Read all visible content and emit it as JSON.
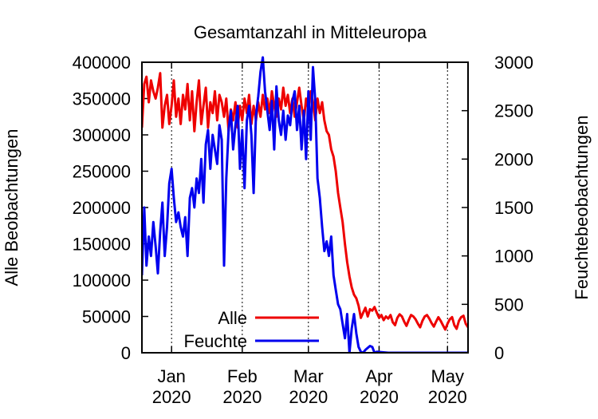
{
  "chart_data": {
    "type": "line",
    "title": "Gesamtanzahl in Mitteleuropa",
    "ylabel": "Alle Beobachtungen",
    "y2label": "Feuchtebeobachtungen",
    "ylim": [
      0,
      400000
    ],
    "y2lim": [
      0,
      3000
    ],
    "xlim": [
      "2019-12-19",
      "2020-05-10"
    ],
    "yticks": [
      0,
      50000,
      100000,
      150000,
      200000,
      250000,
      300000,
      350000,
      400000
    ],
    "y2ticks": [
      0,
      500,
      1000,
      1500,
      2000,
      2500,
      3000
    ],
    "xticks": [
      {
        "date": "2020-01-01",
        "month": "Jan",
        "year": "2020"
      },
      {
        "date": "2020-02-01",
        "month": "Feb",
        "year": "2020"
      },
      {
        "date": "2020-03-01",
        "month": "Mar",
        "year": "2020"
      },
      {
        "date": "2020-04-01",
        "month": "Apr",
        "year": "2020"
      },
      {
        "date": "2020-05-01",
        "month": "May",
        "year": "2020"
      }
    ],
    "grid": "vertical dotted at month starts",
    "legend_position": "bottom-left",
    "series": [
      {
        "name": "Alle",
        "axis": "y",
        "color": "#ee0000",
        "points": [
          [
            "2019-12-19",
            310000
          ],
          [
            "2019-12-20",
            370000
          ],
          [
            "2019-12-21",
            380000
          ],
          [
            "2019-12-22",
            345000
          ],
          [
            "2019-12-23",
            375000
          ],
          [
            "2019-12-24",
            360000
          ],
          [
            "2019-12-25",
            350000
          ],
          [
            "2019-12-26",
            365000
          ],
          [
            "2019-12-27",
            385000
          ],
          [
            "2019-12-28",
            310000
          ],
          [
            "2019-12-29",
            340000
          ],
          [
            "2019-12-30",
            355000
          ],
          [
            "2019-12-31",
            315000
          ],
          [
            "2020-01-01",
            340000
          ],
          [
            "2020-01-02",
            375000
          ],
          [
            "2020-01-03",
            325000
          ],
          [
            "2020-01-04",
            350000
          ],
          [
            "2020-01-05",
            315000
          ],
          [
            "2020-01-06",
            355000
          ],
          [
            "2020-01-07",
            335000
          ],
          [
            "2020-01-08",
            370000
          ],
          [
            "2020-01-09",
            320000
          ],
          [
            "2020-01-10",
            360000
          ],
          [
            "2020-01-11",
            305000
          ],
          [
            "2020-01-12",
            345000
          ],
          [
            "2020-01-13",
            375000
          ],
          [
            "2020-01-14",
            315000
          ],
          [
            "2020-01-15",
            340000
          ],
          [
            "2020-01-16",
            365000
          ],
          [
            "2020-01-17",
            310000
          ],
          [
            "2020-01-18",
            345000
          ],
          [
            "2020-01-19",
            330000
          ],
          [
            "2020-01-20",
            360000
          ],
          [
            "2020-01-21",
            320000
          ],
          [
            "2020-01-22",
            355000
          ],
          [
            "2020-01-23",
            345000
          ],
          [
            "2020-01-24",
            325000
          ],
          [
            "2020-01-25",
            350000
          ],
          [
            "2020-01-26",
            305000
          ],
          [
            "2020-01-27",
            335000
          ],
          [
            "2020-01-28",
            320000
          ],
          [
            "2020-01-29",
            345000
          ],
          [
            "2020-01-30",
            310000
          ],
          [
            "2020-01-31",
            340000
          ],
          [
            "2020-02-01",
            320000
          ],
          [
            "2020-02-02",
            350000
          ],
          [
            "2020-02-03",
            330000
          ],
          [
            "2020-02-04",
            355000
          ],
          [
            "2020-02-05",
            315000
          ],
          [
            "2020-02-06",
            340000
          ],
          [
            "2020-02-07",
            320000
          ],
          [
            "2020-02-08",
            345000
          ],
          [
            "2020-02-09",
            325000
          ],
          [
            "2020-02-10",
            355000
          ],
          [
            "2020-02-11",
            335000
          ],
          [
            "2020-02-12",
            350000
          ],
          [
            "2020-02-13",
            330000
          ],
          [
            "2020-02-14",
            360000
          ],
          [
            "2020-02-15",
            340000
          ],
          [
            "2020-02-16",
            325000
          ],
          [
            "2020-02-17",
            350000
          ],
          [
            "2020-02-18",
            335000
          ],
          [
            "2020-02-19",
            365000
          ],
          [
            "2020-02-20",
            340000
          ],
          [
            "2020-02-21",
            355000
          ],
          [
            "2020-02-22",
            330000
          ],
          [
            "2020-02-23",
            350000
          ],
          [
            "2020-02-24",
            325000
          ],
          [
            "2020-02-25",
            345000
          ],
          [
            "2020-02-26",
            365000
          ],
          [
            "2020-02-27",
            340000
          ],
          [
            "2020-02-28",
            320000
          ],
          [
            "2020-02-29",
            350000
          ],
          [
            "2020-03-01",
            335000
          ],
          [
            "2020-03-02",
            360000
          ],
          [
            "2020-03-03",
            345000
          ],
          [
            "2020-03-04",
            320000
          ],
          [
            "2020-03-05",
            350000
          ],
          [
            "2020-03-06",
            330000
          ],
          [
            "2020-03-07",
            345000
          ],
          [
            "2020-03-08",
            320000
          ],
          [
            "2020-03-09",
            305000
          ],
          [
            "2020-03-10",
            300000
          ],
          [
            "2020-03-11",
            280000
          ],
          [
            "2020-03-12",
            270000
          ],
          [
            "2020-03-13",
            250000
          ],
          [
            "2020-03-14",
            220000
          ],
          [
            "2020-03-15",
            200000
          ],
          [
            "2020-03-16",
            180000
          ],
          [
            "2020-03-17",
            150000
          ],
          [
            "2020-03-18",
            125000
          ],
          [
            "2020-03-19",
            105000
          ],
          [
            "2020-03-20",
            90000
          ],
          [
            "2020-03-21",
            80000
          ],
          [
            "2020-03-22",
            75000
          ],
          [
            "2020-03-23",
            65000
          ],
          [
            "2020-03-24",
            48000
          ],
          [
            "2020-03-25",
            55000
          ],
          [
            "2020-03-26",
            62000
          ],
          [
            "2020-03-27",
            50000
          ],
          [
            "2020-03-28",
            60000
          ],
          [
            "2020-03-29",
            58000
          ],
          [
            "2020-03-30",
            63000
          ],
          [
            "2020-03-31",
            55000
          ],
          [
            "2020-04-01",
            48000
          ],
          [
            "2020-04-02",
            52000
          ],
          [
            "2020-04-03",
            45000
          ],
          [
            "2020-04-04",
            50000
          ],
          [
            "2020-04-05",
            47000
          ],
          [
            "2020-04-06",
            52000
          ],
          [
            "2020-04-07",
            42000
          ],
          [
            "2020-04-08",
            38000
          ],
          [
            "2020-04-09",
            48000
          ],
          [
            "2020-04-10",
            53000
          ],
          [
            "2020-04-11",
            50000
          ],
          [
            "2020-04-12",
            43000
          ],
          [
            "2020-04-13",
            37000
          ],
          [
            "2020-04-14",
            45000
          ],
          [
            "2020-04-15",
            52000
          ],
          [
            "2020-04-16",
            50000
          ],
          [
            "2020-04-17",
            46000
          ],
          [
            "2020-04-18",
            40000
          ],
          [
            "2020-04-19",
            35000
          ],
          [
            "2020-04-20",
            44000
          ],
          [
            "2020-04-21",
            50000
          ],
          [
            "2020-04-22",
            52000
          ],
          [
            "2020-04-23",
            47000
          ],
          [
            "2020-04-24",
            41000
          ],
          [
            "2020-04-25",
            36000
          ],
          [
            "2020-04-26",
            43000
          ],
          [
            "2020-04-27",
            49000
          ],
          [
            "2020-04-28",
            44000
          ],
          [
            "2020-04-29",
            38000
          ],
          [
            "2020-04-30",
            32000
          ],
          [
            "2020-05-01",
            40000
          ],
          [
            "2020-05-02",
            46000
          ],
          [
            "2020-05-03",
            49000
          ],
          [
            "2020-05-04",
            38000
          ],
          [
            "2020-05-05",
            33000
          ],
          [
            "2020-05-06",
            44000
          ],
          [
            "2020-05-07",
            49000
          ],
          [
            "2020-05-08",
            51000
          ],
          [
            "2020-05-09",
            40000
          ],
          [
            "2020-05-10",
            35000
          ],
          [
            "2020-05-11",
            50000
          ]
        ]
      },
      {
        "name": "Feuchte",
        "axis": "y2",
        "color": "#0000ee",
        "points": [
          [
            "2019-12-19",
            800
          ],
          [
            "2019-12-20",
            1500
          ],
          [
            "2019-12-21",
            900
          ],
          [
            "2019-12-22",
            1200
          ],
          [
            "2019-12-23",
            1000
          ],
          [
            "2019-12-24",
            1350
          ],
          [
            "2019-12-25",
            1100
          ],
          [
            "2019-12-26",
            820
          ],
          [
            "2019-12-27",
            1250
          ],
          [
            "2019-12-28",
            1550
          ],
          [
            "2019-12-29",
            1000
          ],
          [
            "2019-12-30",
            1300
          ],
          [
            "2019-12-31",
            1750
          ],
          [
            "2020-01-01",
            1900
          ],
          [
            "2020-01-02",
            1600
          ],
          [
            "2020-01-03",
            1350
          ],
          [
            "2020-01-04",
            1450
          ],
          [
            "2020-01-05",
            1300
          ],
          [
            "2020-01-06",
            1200
          ],
          [
            "2020-01-07",
            1400
          ],
          [
            "2020-01-08",
            1000
          ],
          [
            "2020-01-09",
            1600
          ],
          [
            "2020-01-10",
            1700
          ],
          [
            "2020-01-11",
            1500
          ],
          [
            "2020-01-12",
            1800
          ],
          [
            "2020-01-13",
            1650
          ],
          [
            "2020-01-14",
            2000
          ],
          [
            "2020-01-15",
            1550
          ],
          [
            "2020-01-16",
            2150
          ],
          [
            "2020-01-17",
            2300
          ],
          [
            "2020-01-18",
            1900
          ],
          [
            "2020-01-19",
            2250
          ],
          [
            "2020-01-20",
            2100
          ],
          [
            "2020-01-21",
            1950
          ],
          [
            "2020-01-22",
            2350
          ],
          [
            "2020-01-23",
            2200
          ],
          [
            "2020-01-24",
            900
          ],
          [
            "2020-01-25",
            1800
          ],
          [
            "2020-01-26",
            2300
          ],
          [
            "2020-01-27",
            2500
          ],
          [
            "2020-01-28",
            2100
          ],
          [
            "2020-01-29",
            2350
          ],
          [
            "2020-01-30",
            2550
          ],
          [
            "2020-01-31",
            1900
          ],
          [
            "2020-02-01",
            2300
          ],
          [
            "2020-02-02",
            1700
          ],
          [
            "2020-02-03",
            2400
          ],
          [
            "2020-02-04",
            2550
          ],
          [
            "2020-02-05",
            2250
          ],
          [
            "2020-02-06",
            1650
          ],
          [
            "2020-02-07",
            2450
          ],
          [
            "2020-02-08",
            2650
          ],
          [
            "2020-02-09",
            2900
          ],
          [
            "2020-02-10",
            3050
          ],
          [
            "2020-02-11",
            2700
          ],
          [
            "2020-02-12",
            2500
          ],
          [
            "2020-02-13",
            2300
          ],
          [
            "2020-02-14",
            2600
          ],
          [
            "2020-02-15",
            2100
          ],
          [
            "2020-02-16",
            2750
          ],
          [
            "2020-02-17",
            2400
          ],
          [
            "2020-02-18",
            2250
          ],
          [
            "2020-02-19",
            2500
          ],
          [
            "2020-02-20",
            2200
          ],
          [
            "2020-02-21",
            2450
          ],
          [
            "2020-02-22",
            2350
          ],
          [
            "2020-02-23",
            2600
          ],
          [
            "2020-02-24",
            2700
          ],
          [
            "2020-02-25",
            2300
          ],
          [
            "2020-02-26",
            2550
          ],
          [
            "2020-02-27",
            2100
          ],
          [
            "2020-02-28",
            2500
          ],
          [
            "2020-02-29",
            2000
          ],
          [
            "2020-03-01",
            2700
          ],
          [
            "2020-03-02",
            2200
          ],
          [
            "2020-03-03",
            2950
          ],
          [
            "2020-03-04",
            2600
          ],
          [
            "2020-03-05",
            1800
          ],
          [
            "2020-03-06",
            1600
          ],
          [
            "2020-03-07",
            1300
          ],
          [
            "2020-03-08",
            1050
          ],
          [
            "2020-03-09",
            1150
          ],
          [
            "2020-03-10",
            1000
          ],
          [
            "2020-03-11",
            1200
          ],
          [
            "2020-03-12",
            800
          ],
          [
            "2020-03-13",
            650
          ],
          [
            "2020-03-14",
            500
          ],
          [
            "2020-03-15",
            450
          ],
          [
            "2020-03-16",
            300
          ],
          [
            "2020-03-17",
            150
          ],
          [
            "2020-03-18",
            400
          ],
          [
            "2020-03-19",
            0
          ],
          [
            "2020-03-20",
            250
          ],
          [
            "2020-03-21",
            400
          ],
          [
            "2020-03-22",
            200
          ],
          [
            "2020-03-23",
            60
          ],
          [
            "2020-03-24",
            10
          ],
          [
            "2020-03-25",
            0
          ],
          [
            "2020-03-26",
            30
          ],
          [
            "2020-03-27",
            50
          ],
          [
            "2020-03-28",
            70
          ],
          [
            "2020-03-29",
            60
          ],
          [
            "2020-03-30",
            0
          ],
          [
            "2020-03-31",
            10
          ],
          [
            "2020-04-05",
            0
          ],
          [
            "2020-04-15",
            0
          ],
          [
            "2020-04-25",
            0
          ],
          [
            "2020-05-05",
            0
          ],
          [
            "2020-05-11",
            0
          ]
        ]
      }
    ]
  }
}
